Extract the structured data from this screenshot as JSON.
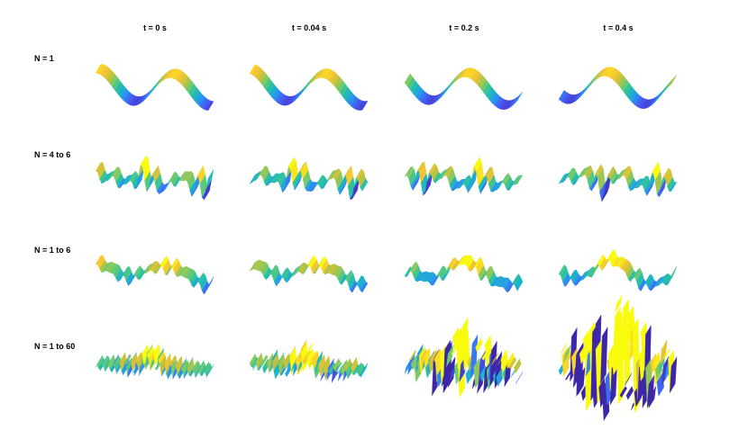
{
  "figure": {
    "columns": [
      "t = 0 s",
      "t = 0.04 s",
      "t = 0.2 s",
      "t = 0.4 s"
    ],
    "rows": [
      "N = 1",
      "N = 4 to 6",
      "N = 1 to 6",
      "N = 1 to 60"
    ]
  },
  "colormap": [
    "#3e26a8",
    "#4755f1",
    "#2c8df4",
    "#1db0cf",
    "#2cc39c",
    "#6fcb6f",
    "#c3c23c",
    "#f8c534",
    "#f9fb0e"
  ],
  "chart_data": {
    "type": "surface",
    "layout": "small-multiples 4x4",
    "grid": false,
    "axes_visible": false,
    "colormap_name": "parula",
    "panels": [
      {
        "row": "N = 1",
        "column": "t = 0 s",
        "dominant_periods": 1.5,
        "modes": "1"
      },
      {
        "row": "N = 1",
        "column": "t = 0.04 s",
        "dominant_periods": 1.5,
        "modes": "1"
      },
      {
        "row": "N = 1",
        "column": "t = 0.2 s",
        "dominant_periods": 1.5,
        "modes": "1"
      },
      {
        "row": "N = 1",
        "column": "t = 0.4 s",
        "dominant_periods": 1.5,
        "modes": "1"
      },
      {
        "row": "N = 4 to 6",
        "column": "t = 0 s",
        "modes": "4-6"
      },
      {
        "row": "N = 4 to 6",
        "column": "t = 0.04 s",
        "modes": "4-6"
      },
      {
        "row": "N = 4 to 6",
        "column": "t = 0.2 s",
        "modes": "4-6"
      },
      {
        "row": "N = 4 to 6",
        "column": "t = 0.4 s",
        "modes": "4-6"
      },
      {
        "row": "N = 1 to 6",
        "column": "t = 0 s",
        "modes": "1-6"
      },
      {
        "row": "N = 1 to 6",
        "column": "t = 0.04 s",
        "modes": "1-6"
      },
      {
        "row": "N = 1 to 6",
        "column": "t = 0.2 s",
        "modes": "1-6"
      },
      {
        "row": "N = 1 to 6",
        "column": "t = 0.4 s",
        "modes": "1-6"
      },
      {
        "row": "N = 1 to 60",
        "column": "t = 0 s",
        "modes": "1-60"
      },
      {
        "row": "N = 1 to 60",
        "column": "t = 0.04 s",
        "modes": "1-60"
      },
      {
        "row": "N = 1 to 60",
        "column": "t = 0.2 s",
        "modes": "1-60"
      },
      {
        "row": "N = 1 to 60",
        "column": "t = 0.4 s",
        "modes": "1-60"
      }
    ]
  }
}
